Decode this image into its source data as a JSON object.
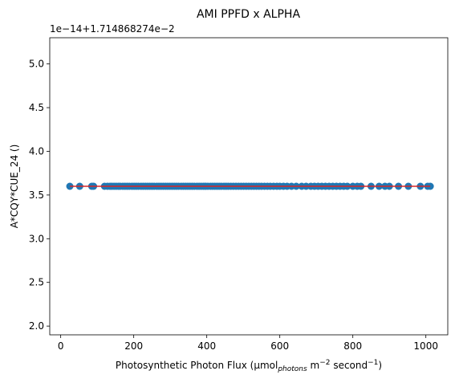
{
  "chart_data": {
    "type": "scatter",
    "title": "AMI PPFD x ALPHA",
    "offset_label": "1e−14+1.714868274e−2",
    "xlabel": {
      "prefix": "Photosynthetic Photon Flux (µmol",
      "sub": "photons",
      "mid": " m",
      "sup1": "−2",
      "mid2": " second",
      "sup2": "−1",
      "suffix": ")"
    },
    "ylabel": "A*CQY*CUE_24 ()",
    "xlim": [
      -30,
      1060
    ],
    "ylim": [
      1.9,
      5.3
    ],
    "xticks": [
      0,
      200,
      400,
      600,
      800,
      1000
    ],
    "yticks": [
      2.0,
      2.5,
      3.0,
      3.5,
      4.0,
      4.5,
      5.0
    ],
    "ytick_labels": [
      "2.0",
      "2.5",
      "3.0",
      "3.5",
      "4.0",
      "4.5",
      "5.0"
    ],
    "point_color": "#1f77b4",
    "line_color": "#d62728",
    "x": [
      25,
      52,
      85,
      90,
      120,
      128,
      135,
      140,
      146,
      152,
      158,
      163,
      170,
      176,
      182,
      188,
      195,
      201,
      207,
      213,
      220,
      226,
      232,
      238,
      244,
      250,
      256,
      263,
      269,
      275,
      281,
      287,
      293,
      299,
      305,
      311,
      317,
      323,
      330,
      336,
      342,
      348,
      354,
      360,
      366,
      373,
      379,
      385,
      391,
      397,
      403,
      410,
      416,
      422,
      428,
      434,
      440,
      447,
      453,
      459,
      466,
      473,
      480,
      487,
      494,
      501,
      508,
      515,
      522,
      529,
      536,
      543,
      550,
      558,
      566,
      574,
      583,
      592,
      600,
      610,
      620,
      632,
      645,
      660,
      672,
      685,
      695,
      705,
      715,
      725,
      735,
      745,
      755,
      765,
      775,
      785,
      800,
      812,
      822,
      850,
      872,
      888,
      900,
      925,
      952,
      985,
      1005,
      1012
    ],
    "y_value": 3.6
  }
}
